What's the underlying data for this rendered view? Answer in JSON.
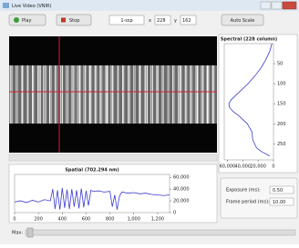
{
  "window": {
    "title": "Live Video (VNIR)"
  },
  "toolbar": {
    "play": "Play",
    "stop": "Stop",
    "mode": "1-ssp",
    "x_label": "x",
    "x_value": "228",
    "y_label": "y",
    "y_value": "162",
    "auto_scale": "Auto Scale"
  },
  "chart_data": [
    {
      "type": "line",
      "orientation": "vertical",
      "title": "Spectral (228 column)",
      "color": "#3b3bcc",
      "x": [
        0,
        20,
        40,
        60,
        80,
        100,
        120,
        140,
        150,
        160,
        170,
        180,
        200,
        220,
        240,
        260,
        270,
        280
      ],
      "values": [
        2000,
        5000,
        10000,
        16000,
        24000,
        33000,
        44000,
        55000,
        58000,
        57000,
        52000,
        45000,
        34000,
        28000,
        27000,
        22000,
        15000,
        5000
      ],
      "xlim": [
        0,
        290
      ],
      "xticks": [
        50,
        100,
        150,
        200,
        250
      ],
      "ylim": [
        64000,
        0
      ],
      "yticks": [
        {
          "value": 60000,
          "label": "60,000"
        },
        {
          "value": 40000,
          "label": "40,000"
        },
        {
          "value": 20000,
          "label": "20,000"
        },
        0
      ]
    },
    {
      "type": "line",
      "orientation": "horizontal",
      "title": "Spatial (702.294 nm)",
      "color": "#3b3bcc",
      "x": [
        0,
        50,
        100,
        150,
        200,
        250,
        300,
        320,
        340,
        360,
        380,
        400,
        420,
        440,
        460,
        480,
        500,
        520,
        540,
        560,
        580,
        600,
        620,
        640,
        660,
        700,
        750,
        800,
        820,
        840,
        860,
        880,
        900,
        950,
        1000,
        1050,
        1100,
        1150,
        1200,
        1250,
        1300
      ],
      "values": [
        18000,
        20000,
        17000,
        21000,
        18000,
        22000,
        20000,
        40000,
        6000,
        38000,
        5000,
        42000,
        8000,
        39000,
        6000,
        40000,
        10000,
        38000,
        7000,
        41000,
        9000,
        37000,
        12000,
        38000,
        36000,
        37000,
        35000,
        36000,
        10000,
        30000,
        5000,
        28000,
        35000,
        33000,
        34000,
        32000,
        33000,
        31000,
        30000,
        29000,
        30000
      ],
      "xlim": [
        0,
        1300
      ],
      "xticks": [
        0,
        200,
        400,
        600,
        800,
        {
          "value": 1000,
          "label": "1,000"
        },
        {
          "value": 1200,
          "label": "1,200"
        }
      ],
      "ylim": [
        0,
        65000
      ],
      "yticks": [
        0,
        {
          "value": 20000,
          "label": "20,000"
        },
        {
          "value": 40000,
          "label": "40,000"
        },
        {
          "value": 60000,
          "label": "60,000"
        }
      ]
    }
  ],
  "settings": {
    "exposure_label": "Exposure (ms):",
    "exposure_value": "0.50",
    "frame_label": "Frame period (ms):",
    "frame_value": "10.00"
  },
  "slider": {
    "label": "Max:"
  }
}
